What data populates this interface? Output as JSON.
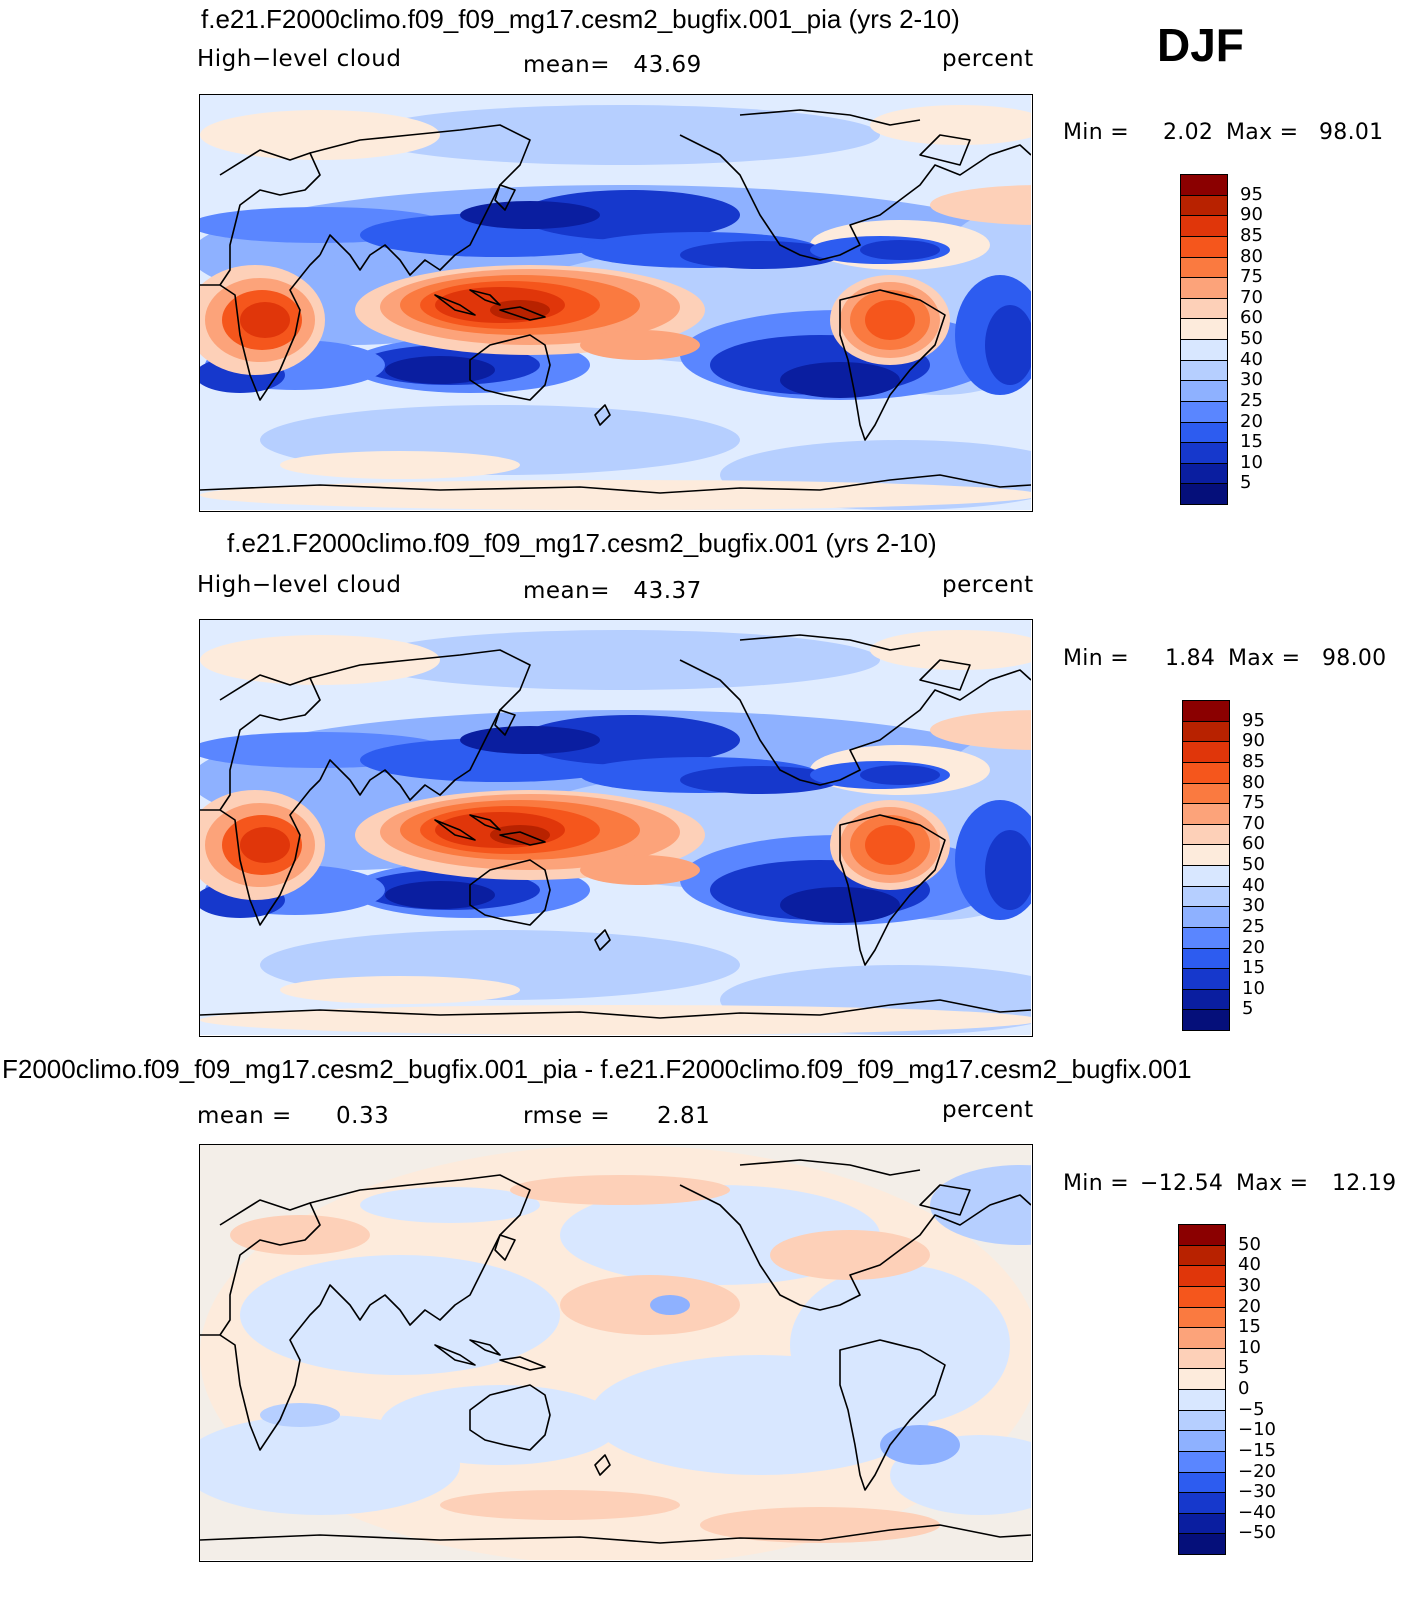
{
  "season": "DJF",
  "colors": {
    "ocean_bg": "#e0ecff",
    "coast": "#000000",
    "diff_bg": "#f3eee8"
  },
  "panels": [
    {
      "title": "f.e21.F2000climo.f09_f09_mg17.cesm2_bugfix.001_pia (yrs 2-10)",
      "variable": "High−level cloud",
      "mean_text": "mean=   43.69",
      "units": "percent",
      "min_label": "Min =",
      "min_value": "2.02",
      "max_label": "Max =",
      "max_value": "98.01",
      "legend_labels": [
        "95",
        "90",
        "85",
        "80",
        "75",
        "70",
        "60",
        "50",
        "40",
        "30",
        "25",
        "20",
        "15",
        "10",
        "5"
      ],
      "legend_colors": [
        "#8b0000",
        "#b82200",
        "#e0360a",
        "#f5561c",
        "#fa7a40",
        "#fca37a",
        "#fdd0b8",
        "#fdebdc",
        "#d8e7ff",
        "#b6cfff",
        "#8eb1ff",
        "#5a86ff",
        "#2d5cf0",
        "#1638cc",
        "#0a1ea0",
        "#050f7a"
      ],
      "field": "abs"
    },
    {
      "title": "f.e21.F2000climo.f09_f09_mg17.cesm2_bugfix.001 (yrs 2-10)",
      "variable": "High−level cloud",
      "mean_text": "mean=   43.37",
      "units": "percent",
      "min_label": "Min =",
      "min_value": "1.84",
      "max_label": "Max =",
      "max_value": "98.00",
      "legend_labels": [
        "95",
        "90",
        "85",
        "80",
        "75",
        "70",
        "60",
        "50",
        "40",
        "30",
        "25",
        "20",
        "15",
        "10",
        "5"
      ],
      "legend_colors": [
        "#8b0000",
        "#b82200",
        "#e0360a",
        "#f5561c",
        "#fa7a40",
        "#fca37a",
        "#fdd0b8",
        "#fdebdc",
        "#d8e7ff",
        "#b6cfff",
        "#8eb1ff",
        "#5a86ff",
        "#2d5cf0",
        "#1638cc",
        "#0a1ea0",
        "#050f7a"
      ],
      "field": "abs"
    },
    {
      "title": "F2000climo.f09_f09_mg17.cesm2_bugfix.001_pia - f.e21.F2000climo.f09_f09_mg17.cesm2_bugfix.001",
      "mean_label": "mean =",
      "mean_value": "0.33",
      "rmse_label": "rmse =",
      "rmse_value": "2.81",
      "units": "percent",
      "min_label": "Min =",
      "min_value": "−12.54",
      "max_label": "Max =",
      "max_value": "12.19",
      "legend_labels": [
        "50",
        "40",
        "30",
        "20",
        "15",
        "10",
        "5",
        "0",
        "−5",
        "−10",
        "−15",
        "−20",
        "−30",
        "−40",
        "−50"
      ],
      "legend_colors": [
        "#8b0000",
        "#b82200",
        "#e0360a",
        "#f5561c",
        "#fa7a40",
        "#fca37a",
        "#fdd0b8",
        "#fdebdc",
        "#d8e7ff",
        "#b6cfff",
        "#8eb1ff",
        "#5a86ff",
        "#2d5cf0",
        "#1638cc",
        "#0a1ea0",
        "#050f7a"
      ],
      "field": "diff"
    }
  ]
}
